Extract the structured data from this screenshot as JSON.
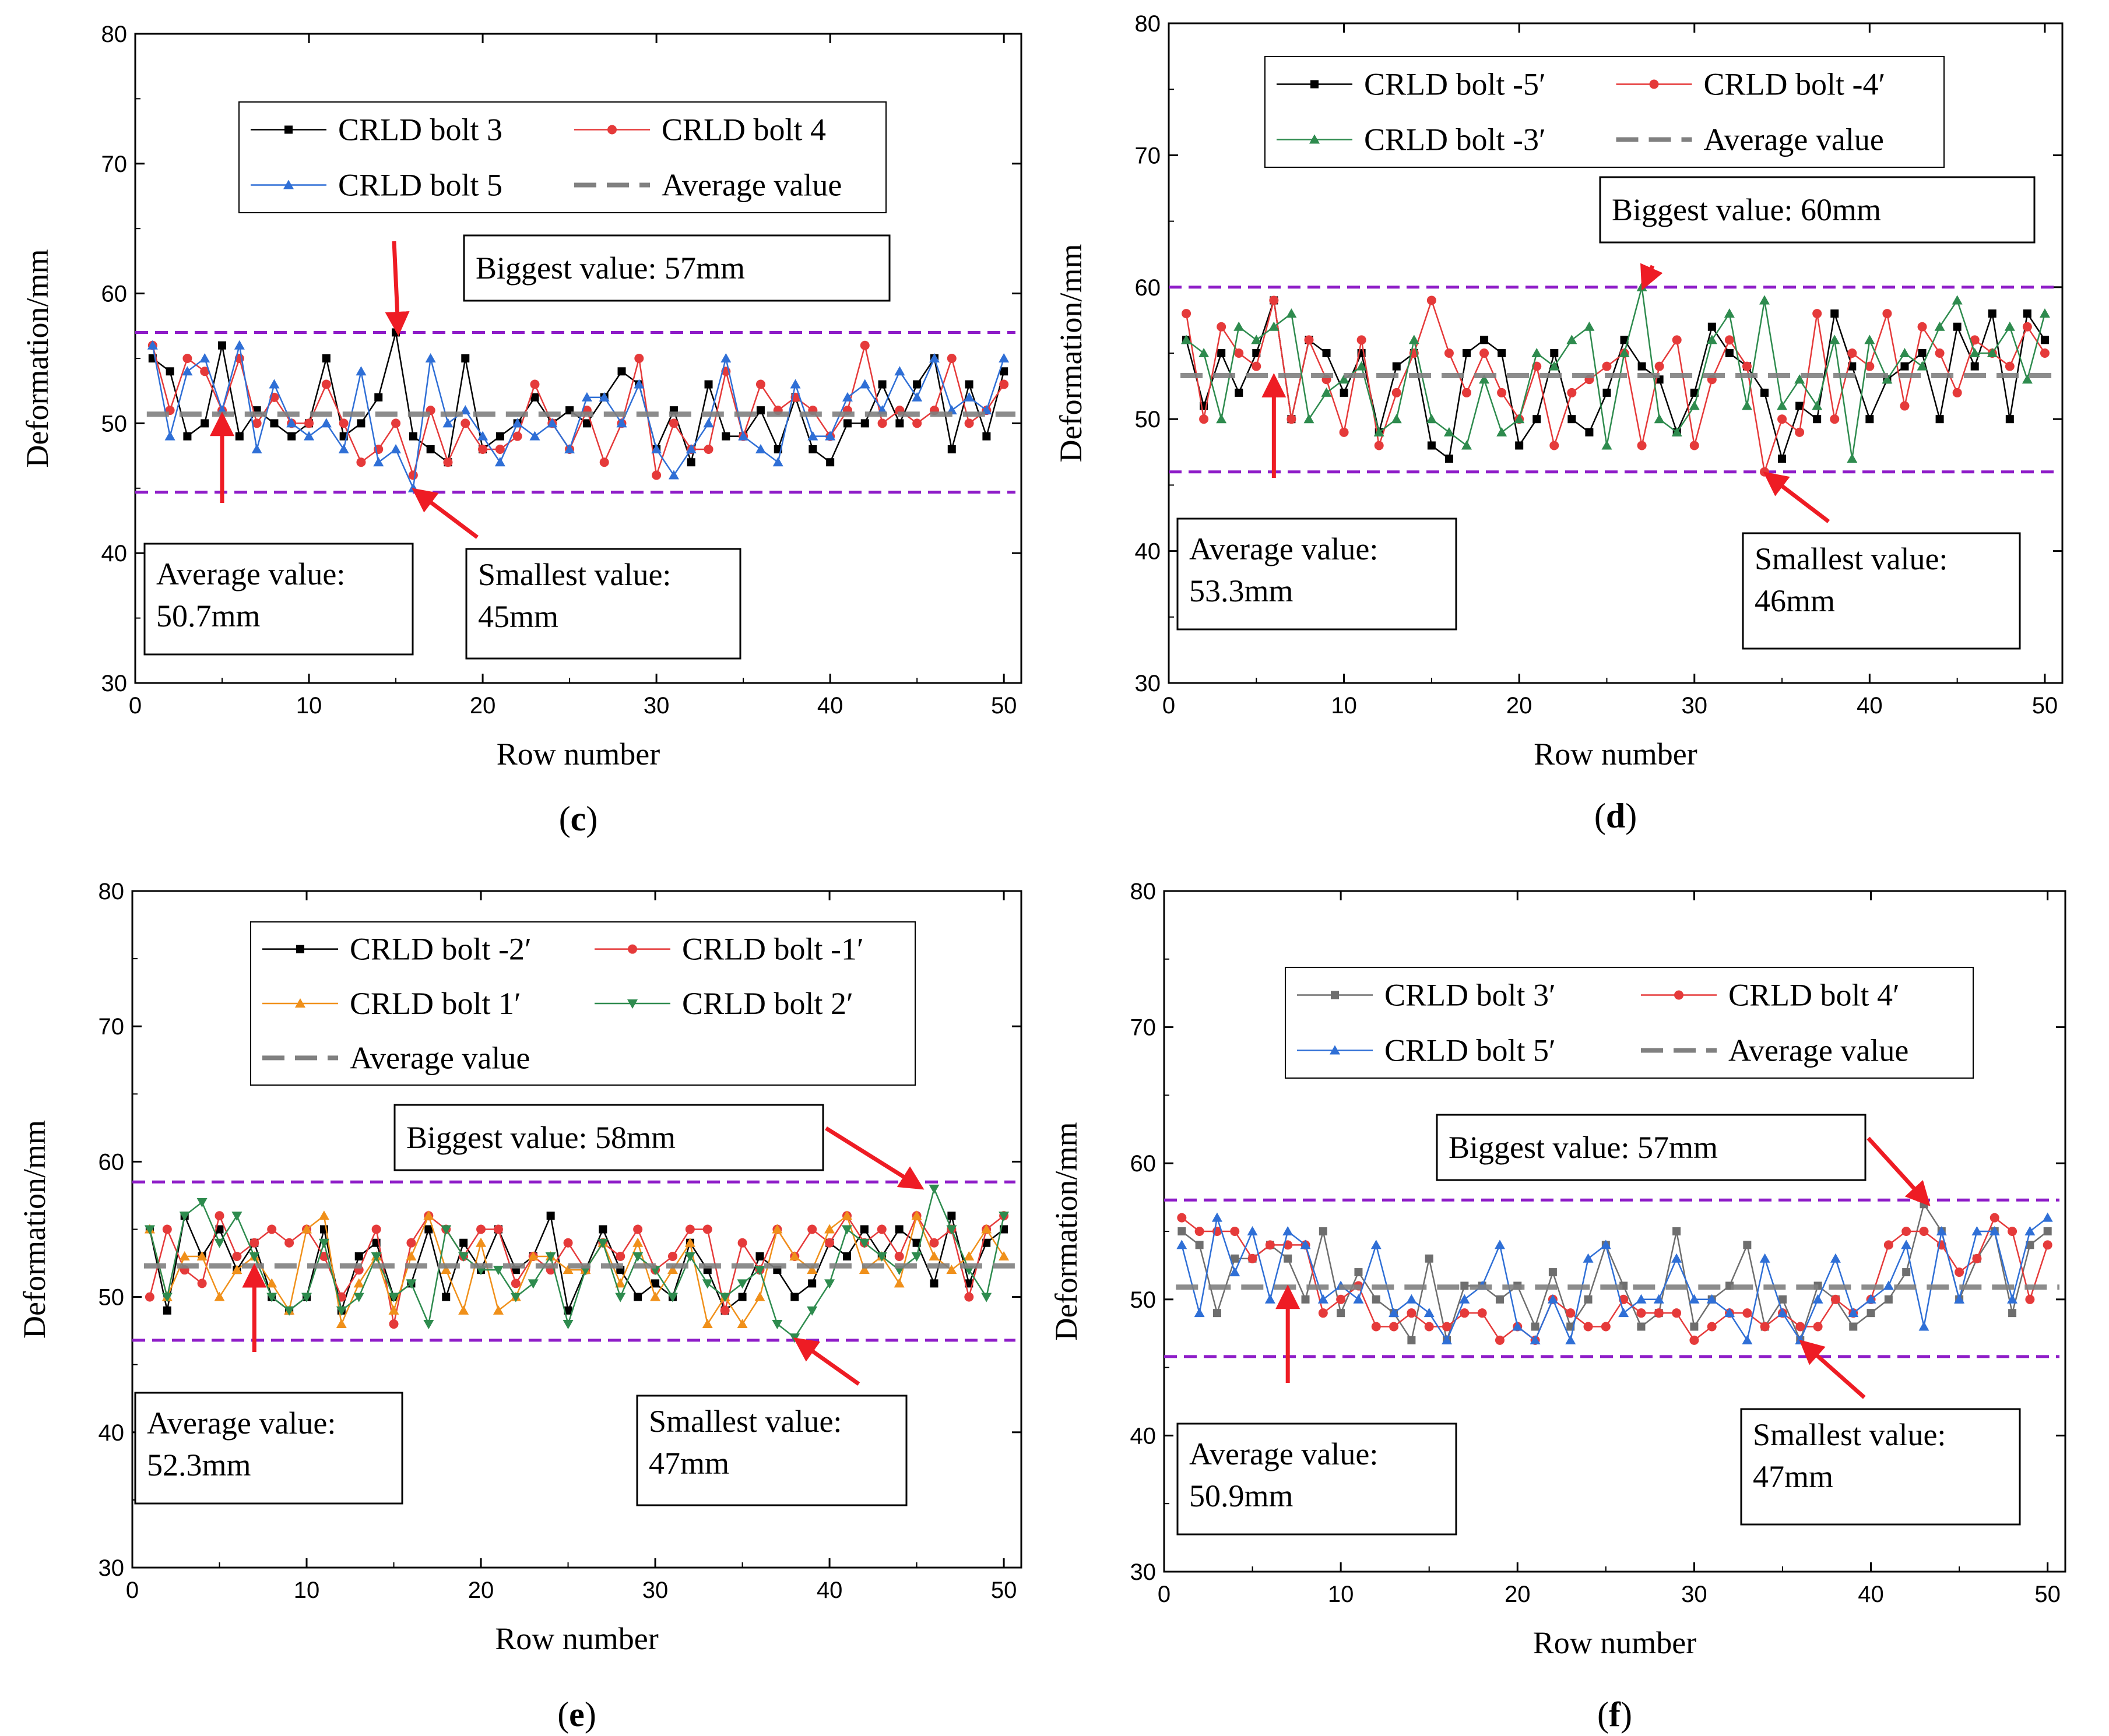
{
  "colors": {
    "black": "#000000",
    "red": "#e53a3a",
    "blue": "#2f6fd6",
    "green": "#2e8b4e",
    "orange": "#f0901a",
    "gray": "#6e6e6e",
    "average": "#808080",
    "limit": "#8e1cc8",
    "arrow": "#ee1c24"
  },
  "chart_data": [
    {
      "id": "c",
      "type": "line",
      "panel_label": "c",
      "xlabel": "Row number",
      "ylabel": "Deformation/mm",
      "xlim": [
        0,
        51
      ],
      "ylim": [
        30,
        80
      ],
      "xticks": [
        0,
        10,
        20,
        30,
        40,
        50
      ],
      "yticks": [
        30,
        40,
        50,
        60,
        70,
        80
      ],
      "legend": {
        "columns": 2,
        "placement": "top-center",
        "entries": [
          "CRLD bolt 3",
          "CRLD bolt 4",
          "CRLD bolt 5",
          "Average value"
        ]
      },
      "series": [
        {
          "name": "CRLD bolt 3",
          "color": "black",
          "marker": "square",
          "values": [
            55,
            54,
            49,
            50,
            56,
            49,
            51,
            50,
            49,
            50,
            55,
            49,
            50,
            52,
            57,
            49,
            48,
            47,
            55,
            48,
            49,
            50,
            52,
            50,
            51,
            50,
            52,
            54,
            53,
            48,
            51,
            47,
            53,
            49,
            49,
            51,
            48,
            52,
            48,
            47,
            50,
            50,
            53,
            50,
            53,
            55,
            48,
            53,
            49,
            54
          ]
        },
        {
          "name": "CRLD bolt 4",
          "color": "red",
          "marker": "circle",
          "values": [
            56,
            51,
            55,
            54,
            51,
            55,
            50,
            52,
            50,
            50,
            53,
            50,
            47,
            48,
            50,
            46,
            51,
            47,
            50,
            48,
            48,
            49,
            53,
            50,
            48,
            51,
            47,
            50,
            55,
            46,
            50,
            48,
            48,
            54,
            49,
            53,
            51,
            52,
            51,
            49,
            51,
            56,
            50,
            51,
            50,
            51,
            55,
            50,
            51,
            53
          ]
        },
        {
          "name": "CRLD bolt 5",
          "color": "blue",
          "marker": "triangle-up",
          "values": [
            56,
            49,
            54,
            55,
            51,
            56,
            48,
            53,
            50,
            49,
            50,
            48,
            54,
            47,
            48,
            45,
            55,
            50,
            51,
            49,
            47,
            50,
            49,
            50,
            48,
            52,
            52,
            50,
            53,
            48,
            46,
            48,
            50,
            55,
            49,
            48,
            47,
            53,
            49,
            49,
            52,
            53,
            51,
            54,
            52,
            55,
            51,
            52,
            51,
            55
          ]
        },
        {
          "name": "Average value",
          "kind": "average",
          "value": 50.7
        }
      ],
      "limits": {
        "max": 57,
        "min": 44.7
      },
      "annotations": {
        "max": {
          "label": "Biggest value: 57mm",
          "point": [
            15,
            57
          ]
        },
        "min": {
          "label_lines": [
            "Smallest value:",
            " 45mm"
          ],
          "point": [
            16,
            45
          ]
        },
        "avg": {
          "label_lines": [
            "Average value:",
            "50.7mm"
          ],
          "point": [
            5,
            50.7
          ]
        }
      }
    },
    {
      "id": "d",
      "type": "line",
      "panel_label": "d",
      "xlabel": "Row number",
      "ylabel": "Deformation/mm",
      "xlim": [
        0,
        51
      ],
      "ylim": [
        30,
        80
      ],
      "xticks": [
        0,
        10,
        20,
        30,
        40,
        50
      ],
      "yticks": [
        30,
        40,
        50,
        60,
        70,
        80
      ],
      "legend": {
        "columns": 2,
        "placement": "top-center",
        "entries": [
          "CRLD bolt -5′",
          "CRLD bolt -4′",
          "CRLD bolt -3′",
          "Average value"
        ]
      },
      "series": [
        {
          "name": "CRLD bolt -5′",
          "color": "black",
          "marker": "square",
          "values": [
            56,
            51,
            55,
            52,
            55,
            59,
            50,
            56,
            55,
            52,
            55,
            49,
            54,
            55,
            48,
            47,
            55,
            56,
            55,
            48,
            50,
            55,
            50,
            49,
            52,
            56,
            54,
            53,
            49,
            52,
            57,
            55,
            54,
            52,
            47,
            51,
            50,
            58,
            54,
            50,
            53,
            54,
            55,
            50,
            57,
            54,
            58,
            50,
            58,
            56
          ]
        },
        {
          "name": "CRLD bolt -4′",
          "color": "red",
          "marker": "circle",
          "values": [
            58,
            50,
            57,
            55,
            54,
            59,
            50,
            56,
            53,
            49,
            56,
            48,
            52,
            55,
            59,
            55,
            52,
            55,
            52,
            50,
            54,
            48,
            52,
            53,
            54,
            55,
            48,
            54,
            56,
            48,
            53,
            56,
            54,
            46,
            50,
            49,
            58,
            50,
            55,
            54,
            58,
            51,
            57,
            55,
            52,
            56,
            55,
            54,
            57,
            55
          ]
        },
        {
          "name": "CRLD bolt -3′",
          "color": "green",
          "marker": "triangle-up",
          "values": [
            56,
            55,
            50,
            57,
            56,
            57,
            58,
            50,
            52,
            53,
            54,
            49,
            50,
            56,
            50,
            49,
            48,
            53,
            49,
            50,
            55,
            54,
            56,
            57,
            48,
            55,
            60,
            50,
            49,
            51,
            56,
            58,
            51,
            59,
            51,
            53,
            51,
            56,
            47,
            56,
            53,
            55,
            54,
            57,
            59,
            55,
            55,
            57,
            53,
            58
          ]
        },
        {
          "name": "Average value",
          "kind": "average",
          "value": 53.3
        }
      ],
      "limits": {
        "max": 60,
        "min": 46
      },
      "annotations": {
        "max": {
          "label": "Biggest value: 60mm",
          "point": [
            27,
            60
          ]
        },
        "min": {
          "label_lines": [
            "Smallest value:",
            " 46mm"
          ],
          "point": [
            34,
            46
          ]
        },
        "avg": {
          "label_lines": [
            "Average value:",
            "53.3mm"
          ],
          "point": [
            6,
            53.3
          ]
        }
      }
    },
    {
      "id": "e",
      "type": "line",
      "panel_label": "e",
      "xlabel": "Row number",
      "ylabel": "Deformation/mm",
      "xlim": [
        0,
        51
      ],
      "ylim": [
        30,
        80
      ],
      "xticks": [
        0,
        10,
        20,
        30,
        40,
        50
      ],
      "yticks": [
        30,
        40,
        50,
        60,
        70,
        80
      ],
      "legend": {
        "columns": 2,
        "placement": "top-center",
        "entries": [
          "CRLD bolt -2′",
          "CRLD bolt -1′",
          "CRLD bolt 1′",
          "CRLD bolt 2′",
          "Average value"
        ]
      },
      "series": [
        {
          "name": "CRLD bolt -2′",
          "color": "black",
          "marker": "square",
          "values": [
            55,
            49,
            56,
            53,
            55,
            52,
            54,
            50,
            49,
            50,
            55,
            49,
            53,
            54,
            50,
            51,
            55,
            50,
            54,
            52,
            55,
            52,
            53,
            56,
            49,
            52,
            55,
            52,
            50,
            51,
            50,
            54,
            52,
            49,
            50,
            53,
            52,
            50,
            51,
            54,
            53,
            55,
            53,
            55,
            54,
            51,
            56,
            51,
            54,
            55
          ]
        },
        {
          "name": "CRLD bolt -1′",
          "color": "red",
          "marker": "circle",
          "values": [
            50,
            55,
            52,
            51,
            56,
            53,
            54,
            55,
            54,
            55,
            53,
            50,
            52,
            55,
            48,
            54,
            56,
            55,
            53,
            55,
            55,
            51,
            53,
            52,
            54,
            52,
            54,
            53,
            55,
            52,
            53,
            55,
            55,
            49,
            54,
            52,
            55,
            53,
            55,
            54,
            56,
            54,
            55,
            53,
            56,
            54,
            55,
            50,
            55,
            56
          ]
        },
        {
          "name": "CRLD bolt 1′",
          "color": "orange",
          "marker": "triangle-up",
          "values": [
            55,
            50,
            53,
            53,
            50,
            52,
            53,
            51,
            49,
            55,
            56,
            48,
            51,
            53,
            49,
            53,
            56,
            52,
            49,
            54,
            49,
            50,
            53,
            53,
            52,
            52,
            54,
            51,
            54,
            50,
            52,
            54,
            48,
            50,
            48,
            50,
            55,
            53,
            52,
            55,
            56,
            52,
            53,
            51,
            56,
            53,
            52,
            53,
            55,
            53
          ]
        },
        {
          "name": "CRLD bolt 2′",
          "color": "green",
          "marker": "triangle-down",
          "values": [
            55,
            50,
            56,
            57,
            54,
            56,
            53,
            50,
            49,
            50,
            54,
            49,
            50,
            53,
            50,
            51,
            48,
            55,
            53,
            52,
            52,
            50,
            51,
            53,
            48,
            52,
            54,
            50,
            53,
            52,
            50,
            53,
            51,
            50,
            51,
            52,
            48,
            47,
            49,
            51,
            55,
            54,
            53,
            52,
            53,
            58,
            55,
            52,
            50,
            56
          ]
        },
        {
          "name": "Average value",
          "kind": "average",
          "value": 52.3
        }
      ],
      "limits": {
        "max": 58.5,
        "min": 46.8
      },
      "annotations": {
        "max": {
          "label": "Biggest value: 58mm",
          "point": [
            45,
            58
          ]
        },
        "min": {
          "label_lines": [
            "Smallest value:",
            " 47mm"
          ],
          "point": [
            38,
            47
          ]
        },
        "avg": {
          "label_lines": [
            "Average value:",
            "52.3mm"
          ],
          "point": [
            7,
            52.3
          ]
        }
      }
    },
    {
      "id": "f",
      "type": "line",
      "panel_label": "f",
      "xlabel": "Row number",
      "ylabel": "Deformation/mm",
      "xlim": [
        0,
        51
      ],
      "ylim": [
        30,
        80
      ],
      "xticks": [
        0,
        10,
        20,
        30,
        40,
        50
      ],
      "yticks": [
        30,
        40,
        50,
        60,
        70,
        80
      ],
      "legend": {
        "columns": 2,
        "placement": "top-center",
        "entries": [
          "CRLD bolt 3′",
          "CRLD bolt 4′",
          "CRLD bolt 5′",
          "Average value"
        ]
      },
      "series": [
        {
          "name": "CRLD bolt 3′",
          "color": "gray",
          "marker": "square",
          "values": [
            55,
            54,
            49,
            53,
            53,
            54,
            53,
            50,
            55,
            49,
            52,
            50,
            49,
            47,
            53,
            47,
            51,
            51,
            50,
            51,
            48,
            52,
            48,
            50,
            54,
            51,
            48,
            49,
            55,
            48,
            50,
            51,
            54,
            48,
            50,
            47,
            51,
            50,
            48,
            49,
            50,
            52,
            57,
            55,
            50,
            53,
            55,
            49,
            54,
            55
          ]
        },
        {
          "name": "CRLD bolt 4′",
          "color": "red",
          "marker": "circle",
          "values": [
            56,
            55,
            55,
            55,
            53,
            54,
            54,
            54,
            49,
            50,
            51,
            48,
            48,
            49,
            48,
            48,
            49,
            49,
            47,
            48,
            47,
            50,
            49,
            48,
            48,
            50,
            49,
            49,
            49,
            47,
            48,
            49,
            49,
            48,
            49,
            48,
            48,
            50,
            49,
            50,
            54,
            55,
            55,
            54,
            52,
            53,
            56,
            55,
            50,
            54
          ]
        },
        {
          "name": "CRLD bolt 5′",
          "color": "blue",
          "marker": "triangle-up",
          "values": [
            54,
            49,
            56,
            52,
            55,
            50,
            55,
            54,
            50,
            51,
            50,
            54,
            49,
            50,
            49,
            47,
            50,
            51,
            54,
            48,
            47,
            50,
            47,
            53,
            54,
            49,
            50,
            50,
            53,
            50,
            50,
            49,
            47,
            53,
            49,
            47,
            50,
            53,
            49,
            50,
            51,
            54,
            48,
            55,
            50,
            55,
            55,
            50,
            55,
            56
          ]
        },
        {
          "name": "Average value",
          "kind": "average",
          "value": 50.9
        }
      ],
      "limits": {
        "max": 57.3,
        "min": 45.8
      },
      "annotations": {
        "max": {
          "label": "Biggest value: 57mm",
          "point": [
            43,
            57
          ]
        },
        "min": {
          "label_lines": [
            "Smallest value:",
            " 47mm"
          ],
          "point": [
            36,
            47
          ]
        },
        "avg": {
          "label_lines": [
            "Average value:",
            "50.9mm"
          ],
          "point": [
            7,
            50.9
          ]
        }
      }
    }
  ]
}
